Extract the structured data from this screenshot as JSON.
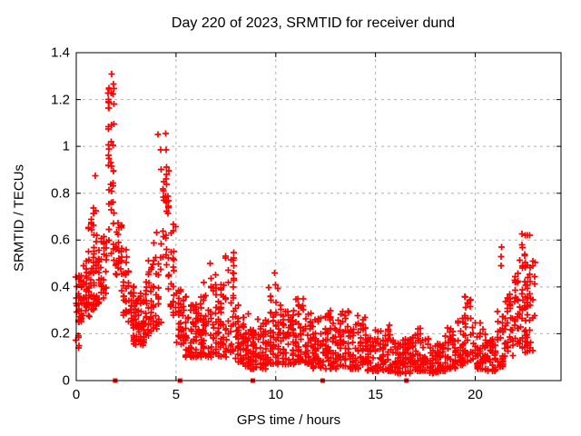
{
  "chart_data": {
    "type": "scatter",
    "title": "Day 220 of 2023, SRMTID for receiver dund",
    "xlabel": "GPS time / hours",
    "ylabel": "SRMTID / TECUs",
    "xlim": [
      0,
      24.3
    ],
    "ylim": [
      0,
      1.4
    ],
    "x_ticks": [
      {
        "v": 0,
        "label": "0"
      },
      {
        "v": 5,
        "label": "5"
      },
      {
        "v": 10,
        "label": "10"
      },
      {
        "v": 15,
        "label": "15"
      },
      {
        "v": 20,
        "label": "20"
      }
    ],
    "y_ticks": [
      {
        "v": 0,
        "label": "0"
      },
      {
        "v": 0.2,
        "label": "0.2"
      },
      {
        "v": 0.4,
        "label": "0.4"
      },
      {
        "v": 0.6,
        "label": "0.6"
      },
      {
        "v": 0.8,
        "label": "0.8"
      },
      {
        "v": 1,
        "label": "1"
      },
      {
        "v": 1.2,
        "label": "1.2"
      },
      {
        "v": 1.4,
        "label": "1.4"
      }
    ],
    "grid": {
      "shown": true,
      "style": "dashed",
      "color": "#b0b0b0"
    },
    "legend": "none",
    "colors": {
      "marker": "#ff0000",
      "axis": "#000000",
      "background": "#ffffff"
    },
    "series": [
      {
        "name": "SRMTID",
        "marker": "plus",
        "note": "dense 30s scatter; envelope_bins are [t_start_h, t_end_h, y_min_TECU, y_max_TECU, n_points, skew_exp(optional)] read from the plot",
        "envelope_bins": [
          [
            0.0,
            0.3,
            0.25,
            0.45,
            40
          ],
          [
            0.0,
            0.2,
            0.14,
            0.26,
            6
          ],
          [
            0.3,
            0.6,
            0.27,
            0.52,
            34
          ],
          [
            0.6,
            0.9,
            0.3,
            0.66,
            32
          ],
          [
            0.75,
            0.95,
            0.55,
            0.78,
            10,
            1.0
          ],
          [
            0.9,
            1.2,
            0.32,
            0.62,
            28
          ],
          [
            1.2,
            1.55,
            0.35,
            0.62,
            26
          ],
          [
            1.5,
            1.95,
            0.5,
            0.92,
            18,
            1.0
          ],
          [
            1.55,
            1.9,
            0.85,
            1.31,
            30,
            0.8
          ],
          [
            1.95,
            2.3,
            0.45,
            0.73,
            26,
            1.2
          ],
          [
            2.3,
            2.65,
            0.28,
            0.56,
            28
          ],
          [
            2.65,
            3.05,
            0.15,
            0.42,
            40
          ],
          [
            3.05,
            3.45,
            0.15,
            0.38,
            38
          ],
          [
            3.45,
            3.85,
            0.18,
            0.52,
            32
          ],
          [
            3.85,
            4.25,
            0.22,
            0.68,
            28
          ],
          [
            4.25,
            4.6,
            0.72,
            1.08,
            18,
            0.9
          ],
          [
            4.2,
            4.7,
            0.38,
            0.82,
            22,
            1.0
          ],
          [
            4.7,
            5.05,
            0.28,
            0.68,
            24,
            1.2
          ],
          [
            5.05,
            5.45,
            0.15,
            0.4,
            36
          ],
          [
            5.45,
            5.85,
            0.1,
            0.36,
            38
          ],
          [
            5.85,
            6.25,
            0.1,
            0.33,
            38
          ],
          [
            6.25,
            6.65,
            0.1,
            0.43,
            38
          ],
          [
            6.65,
            7.05,
            0.1,
            0.5,
            36
          ],
          [
            7.05,
            7.45,
            0.1,
            0.42,
            36
          ],
          [
            7.45,
            7.95,
            0.12,
            0.55,
            40
          ],
          [
            7.95,
            8.35,
            0.08,
            0.38,
            36
          ],
          [
            8.35,
            8.75,
            0.06,
            0.29,
            38
          ],
          [
            8.75,
            9.15,
            0.05,
            0.25,
            38
          ],
          [
            9.15,
            9.55,
            0.05,
            0.28,
            38
          ],
          [
            9.55,
            10.1,
            0.07,
            0.43,
            44
          ],
          [
            10.1,
            10.55,
            0.07,
            0.33,
            38
          ],
          [
            10.55,
            11.0,
            0.07,
            0.3,
            38
          ],
          [
            11.0,
            11.45,
            0.08,
            0.36,
            38
          ],
          [
            11.45,
            11.85,
            0.07,
            0.3,
            36
          ],
          [
            11.85,
            12.3,
            0.05,
            0.27,
            38
          ],
          [
            12.3,
            12.75,
            0.05,
            0.3,
            38
          ],
          [
            12.75,
            13.2,
            0.05,
            0.28,
            38
          ],
          [
            13.2,
            13.65,
            0.06,
            0.31,
            34
          ],
          [
            13.65,
            14.1,
            0.05,
            0.25,
            36
          ],
          [
            14.1,
            14.55,
            0.06,
            0.28,
            34
          ],
          [
            14.55,
            15.0,
            0.04,
            0.22,
            36
          ],
          [
            15.0,
            15.45,
            0.04,
            0.22,
            34
          ],
          [
            15.45,
            15.9,
            0.04,
            0.22,
            32
          ],
          [
            15.9,
            16.35,
            0.03,
            0.17,
            36
          ],
          [
            16.35,
            16.8,
            0.03,
            0.18,
            36
          ],
          [
            16.8,
            17.25,
            0.04,
            0.23,
            36
          ],
          [
            17.25,
            17.7,
            0.04,
            0.2,
            36
          ],
          [
            17.7,
            18.15,
            0.03,
            0.17,
            36
          ],
          [
            18.15,
            18.6,
            0.04,
            0.2,
            36
          ],
          [
            18.6,
            19.05,
            0.05,
            0.23,
            34
          ],
          [
            19.05,
            19.45,
            0.06,
            0.27,
            30
          ],
          [
            19.45,
            19.85,
            0.08,
            0.37,
            30,
            1.1
          ],
          [
            19.85,
            20.3,
            0.05,
            0.25,
            32
          ],
          [
            20.3,
            20.7,
            0.04,
            0.23,
            30
          ],
          [
            20.7,
            21.1,
            0.04,
            0.18,
            30
          ],
          [
            21.1,
            21.5,
            0.06,
            0.3,
            28
          ],
          [
            21.5,
            21.9,
            0.1,
            0.37,
            28,
            1.2
          ],
          [
            21.9,
            22.3,
            0.14,
            0.46,
            30,
            1.2
          ],
          [
            22.3,
            22.75,
            0.3,
            0.63,
            32,
            1.0
          ],
          [
            22.2,
            22.9,
            0.12,
            0.4,
            34
          ],
          [
            22.75,
            23.0,
            0.25,
            0.52,
            10,
            1.0
          ]
        ],
        "outlier_points": [
          [
            0.95,
            0.875
          ],
          [
            4.1,
            1.05
          ],
          [
            6.72,
            0.5
          ],
          [
            9.95,
            0.46
          ],
          [
            15.7,
            0.236
          ],
          [
            21.3,
            0.49
          ],
          [
            21.3,
            0.53
          ],
          [
            21.32,
            0.57
          ]
        ],
        "peaks": [
          {
            "x": 1.8,
            "y": 1.3
          },
          {
            "x": 4.4,
            "y": 1.07
          },
          {
            "x": 7.6,
            "y": 0.55
          },
          {
            "x": 22.5,
            "y": 0.63
          }
        ]
      },
      {
        "name": "baseline event markers",
        "marker": "filled-square",
        "points": [
          [
            1.95,
            0
          ],
          [
            5.2,
            0
          ],
          [
            8.85,
            0
          ],
          [
            12.35,
            0
          ],
          [
            16.55,
            0
          ]
        ]
      }
    ],
    "seed": 7
  }
}
